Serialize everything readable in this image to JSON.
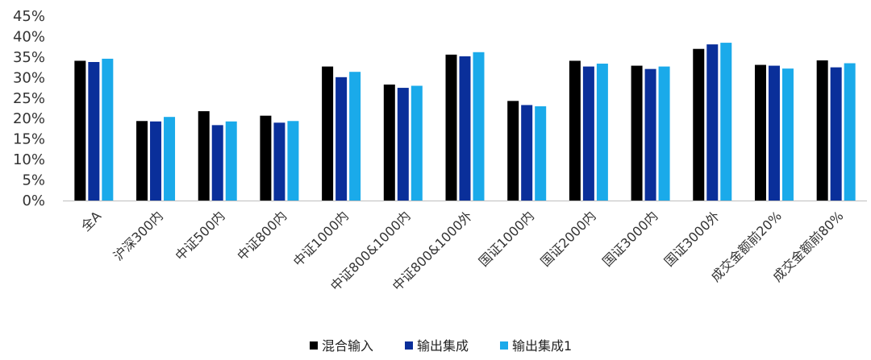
{
  "chart_data": {
    "type": "bar",
    "categories": [
      "全A",
      "沪深300内",
      "中证500内",
      "中证800内",
      "中证1000内",
      "中证800&1000内",
      "中证800&1000外",
      "国证1000内",
      "国证2000内",
      "国证3000内",
      "国证3000外",
      "成交金额前20%",
      "成交金额前80%"
    ],
    "series": [
      {
        "name": "混合输入",
        "color": "#000000",
        "values": [
          34.1,
          19.4,
          21.8,
          20.7,
          32.7,
          28.3,
          35.6,
          24.3,
          34.1,
          32.9,
          37.0,
          33.1,
          34.2
        ]
      },
      {
        "name": "输出集成",
        "color": "#0a2f9a",
        "values": [
          33.8,
          19.3,
          18.4,
          19.0,
          30.1,
          27.5,
          35.2,
          23.3,
          32.7,
          32.1,
          38.1,
          32.9,
          32.5
        ]
      },
      {
        "name": "输出集成1",
        "color": "#1aaaea",
        "values": [
          34.6,
          20.4,
          19.3,
          19.4,
          31.4,
          28.0,
          36.2,
          23.0,
          33.4,
          32.7,
          38.5,
          32.2,
          33.5
        ]
      }
    ],
    "y_ticks": [
      "0%",
      "5%",
      "10%",
      "15%",
      "20%",
      "25%",
      "30%",
      "35%",
      "40%",
      "45%"
    ],
    "ylim": [
      0,
      45
    ],
    "y_unit": "%",
    "grid": false,
    "legend_position": "bottom-center"
  }
}
